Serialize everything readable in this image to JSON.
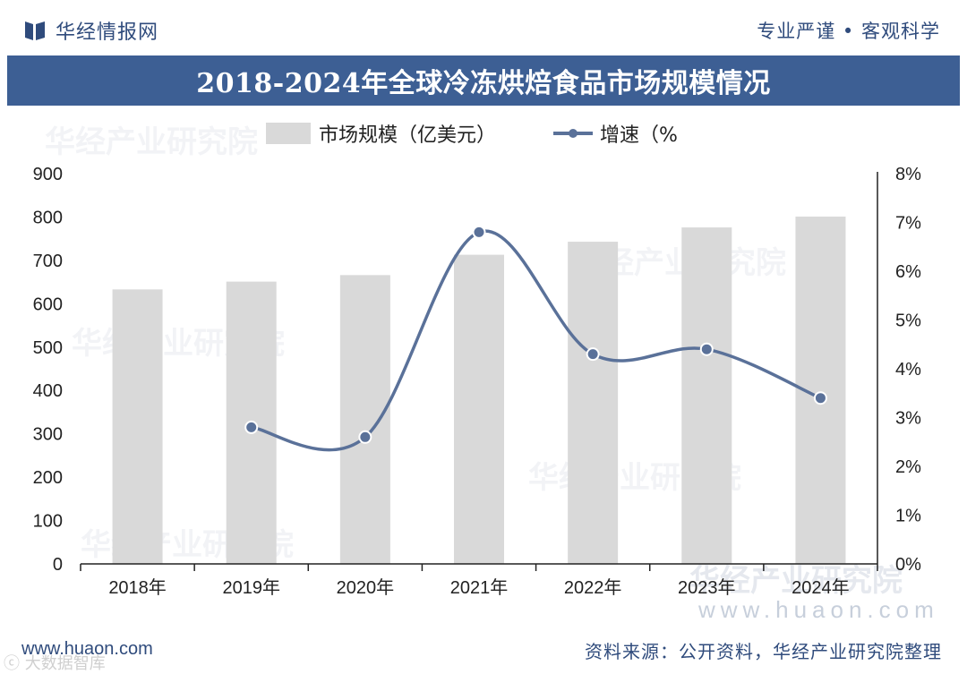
{
  "header": {
    "brand_name": "华经情报网",
    "slogan": "专业严谨 • 客观科学"
  },
  "title": "2018-2024年全球冷冻烘焙食品市场规模情况",
  "watermarks": {
    "text": "华经产业研究院",
    "site": "www.huaon.com"
  },
  "footer": {
    "url": "www.huaon.com",
    "source": "资料来源：公开资料，华经产业研究院整理",
    "corner_mark": "ⓒ 大数据智库"
  },
  "colors": {
    "title_band": "#3d5f94",
    "bar": "#d9d9d9",
    "line": "#5a7199",
    "brand": "#2f4b7c"
  },
  "chart_data": {
    "type": "bar+line",
    "title": "2018-2024年全球冷冻烘焙食品市场规模情况",
    "categories": [
      "2018年",
      "2019年",
      "2020年",
      "2021年",
      "2022年",
      "2023年",
      "2024年"
    ],
    "series": [
      {
        "name": "市场规模（亿美元）",
        "type": "bar",
        "axis": "left",
        "values": [
          633,
          651,
          666,
          713,
          743,
          776,
          801
        ]
      },
      {
        "name": "增速（%",
        "type": "line",
        "axis": "right",
        "values": [
          null,
          2.8,
          2.6,
          6.8,
          4.3,
          4.4,
          3.4
        ]
      }
    ],
    "y_left": {
      "min": 0,
      "max": 900,
      "step": 100,
      "ticks": [
        "0",
        "100",
        "200",
        "300",
        "400",
        "500",
        "600",
        "700",
        "800",
        "900"
      ]
    },
    "y_right": {
      "min": 0,
      "max": 8,
      "step": 1,
      "ticks": [
        "0%",
        "1%",
        "2%",
        "3%",
        "4%",
        "5%",
        "6%",
        "7%",
        "8%"
      ]
    },
    "legend_position": "top",
    "grid": false
  }
}
